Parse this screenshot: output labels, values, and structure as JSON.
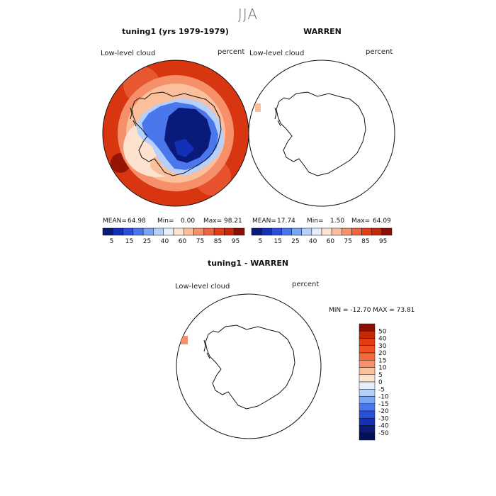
{
  "season": "JJA",
  "panel1": {
    "title": "tuning1 (yrs 1979-1979)",
    "field": "Low-level cloud",
    "units": "percent",
    "stats": {
      "mean_label": "MEAN=",
      "mean": "64.98",
      "min_label": "Min=",
      "min": "0.00",
      "max_label": "Max=",
      "max": "98.21"
    }
  },
  "panel2": {
    "title": "WARREN",
    "field": "Low-level cloud",
    "units": "percent",
    "stats": {
      "mean_label": "MEAN=",
      "mean": "17.74",
      "min_label": "Min=",
      "min": "1.50",
      "max_label": "Max=",
      "max": "64.09"
    }
  },
  "panel3": {
    "title": "tuning1 - WARREN",
    "field": "Low-level cloud",
    "units": "percent",
    "minmax": "MIN = -12.70  MAX =  73.81"
  },
  "colorbar_abs": {
    "ticks": [
      "5",
      "15",
      "25",
      "40",
      "60",
      "75",
      "85",
      "95"
    ],
    "colors": [
      "#0a1a7a",
      "#1530b8",
      "#2a4fd8",
      "#4a78ec",
      "#7aa5f5",
      "#b5d0fb",
      "#e6eefc",
      "#fde2cf",
      "#fbbf9c",
      "#f6906a",
      "#ee6640",
      "#e33d16",
      "#c42a08",
      "#8a0f04"
    ]
  },
  "colorbar_diff": {
    "ticks": [
      "50",
      "40",
      "30",
      "20",
      "15",
      "10",
      "5",
      "0",
      "-5",
      "-10",
      "-15",
      "-20",
      "-30",
      "-40",
      "-50"
    ],
    "colors": [
      "#8a0f04",
      "#c42a08",
      "#e33d16",
      "#ee5022",
      "#f26b3c",
      "#f6906a",
      "#fbbf9c",
      "#fde2cf",
      "#e6eefc",
      "#b5d0fb",
      "#7aa5f5",
      "#4a78ec",
      "#2a4fd8",
      "#1530b8",
      "#0a1a7a",
      "#03105a"
    ]
  }
}
